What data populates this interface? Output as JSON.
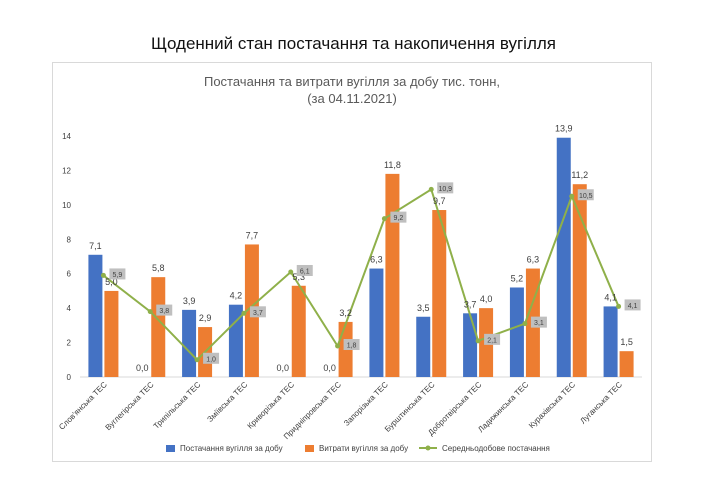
{
  "page_title": "Щоденний стан постачання та накопичення вугілля",
  "chart_data": {
    "type": "bar",
    "title_line1": "Постачання та витрати вугілля  за добу тис. тонн,",
    "title_line2": "(за 04.11.2021)",
    "categories": [
      "Слов'янська ТЕС",
      "Вуглегірська ТЕС",
      "Трипільська ТЕС",
      "Зміївська ТЕС",
      "Криворізька ТЕС",
      "Придніпровська ТЕС",
      "Запорізька ТЕС",
      "Бурштинська ТЕС",
      "Добротвірська ТЕС",
      "Ладижинська ТЕС",
      "Курахівська ТЕС",
      "Луганська ТЕС"
    ],
    "series": [
      {
        "name": "Постачання вугілля за добу",
        "kind": "bar",
        "color": "#4472C4",
        "values": [
          7.1,
          0.0,
          3.9,
          4.2,
          0.0,
          0.0,
          6.3,
          3.5,
          3.7,
          5.2,
          13.9,
          4.1
        ],
        "labels": [
          "7,1",
          "0,0",
          "3,9",
          "4,2",
          "0,0",
          "0,0",
          "6,3",
          "3,5",
          "3,7",
          "5,2",
          "13,9",
          "4,1"
        ]
      },
      {
        "name": "Витрати вугілля за добу",
        "kind": "bar",
        "color": "#ED7D31",
        "values": [
          5.0,
          5.8,
          2.9,
          7.7,
          5.3,
          3.2,
          11.8,
          9.7,
          4.0,
          6.3,
          11.2,
          1.5
        ],
        "labels": [
          "5,0",
          "5,8",
          "2,9",
          "7,7",
          "5,3",
          "3,2",
          "11,8",
          "9,7",
          "4,0",
          "6,3",
          "11,2",
          "1,5"
        ]
      },
      {
        "name": "Середньодобове постачання",
        "kind": "line",
        "color": "#8FB04A",
        "values": [
          5.9,
          3.8,
          1.0,
          3.7,
          6.1,
          1.8,
          9.2,
          10.9,
          2.1,
          3.1,
          10.5,
          4.1
        ],
        "labels": [
          "5,9",
          "3,8",
          "1,0",
          "3,7",
          "6,1",
          "1,8",
          "9,2",
          "10,9",
          "2,1",
          "3,1",
          "10,5",
          "4,1"
        ]
      }
    ],
    "ylim": [
      0,
      14
    ],
    "yticks": [
      "0",
      "2",
      "4",
      "6",
      "8",
      "10",
      "12",
      "14"
    ],
    "grid": false,
    "legend_position": "bottom"
  }
}
